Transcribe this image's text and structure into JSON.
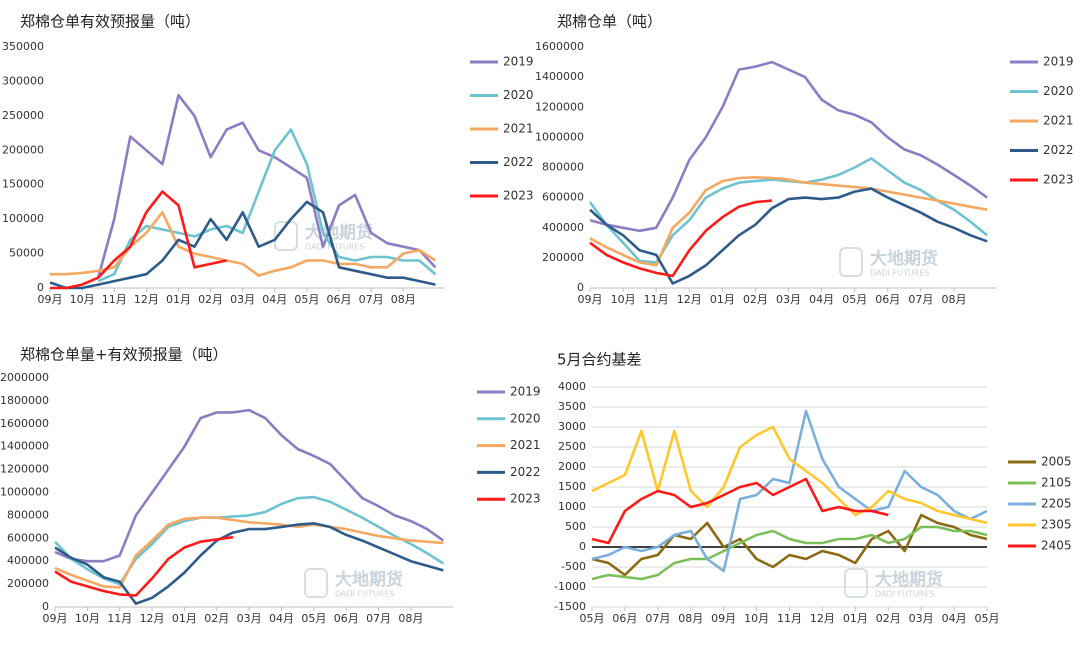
{
  "chart_data": [
    {
      "type": "line",
      "title": "郑棉仓单有效预报量（吨）",
      "watermark": "大地期货",
      "watermark_en": "DADI FUTURES",
      "x": [
        0,
        0.5,
        1,
        1.5,
        2,
        2.5,
        3,
        3.5,
        4,
        4.5,
        5,
        5.5,
        6,
        6.5,
        7,
        7.5,
        8,
        8.5,
        9,
        9.5,
        10,
        10.5,
        11,
        11.5,
        12
      ],
      "xlim": [
        0,
        12.3
      ],
      "xticks": [
        {
          "value": 0,
          "label": "09月"
        },
        {
          "value": 1,
          "label": "10月"
        },
        {
          "value": 2,
          "label": "11月"
        },
        {
          "value": 3,
          "label": "12月"
        },
        {
          "value": 4,
          "label": "01月"
        },
        {
          "value": 5,
          "label": "02月"
        },
        {
          "value": 6,
          "label": "03月"
        },
        {
          "value": 7,
          "label": "04月"
        },
        {
          "value": 8,
          "label": "05月"
        },
        {
          "value": 9,
          "label": "06月"
        },
        {
          "value": 10,
          "label": "07月"
        },
        {
          "value": 11,
          "label": "08月"
        }
      ],
      "ylim": [
        0,
        350000
      ],
      "yticks": [
        0,
        50000,
        100000,
        150000,
        200000,
        250000,
        300000,
        350000
      ],
      "grid": false,
      "series": [
        {
          "name": "2019",
          "color": "#8e7cc3",
          "values": [
            null,
            null,
            null,
            15000,
            100000,
            220000,
            200000,
            180000,
            280000,
            250000,
            190000,
            230000,
            240000,
            200000,
            190000,
            175000,
            160000,
            60000,
            120000,
            135000,
            80000,
            65000,
            60000,
            55000,
            30000
          ]
        },
        {
          "name": "2020",
          "color": "#6ec3d0",
          "values": [
            null,
            null,
            null,
            10000,
            20000,
            70000,
            90000,
            85000,
            80000,
            75000,
            85000,
            90000,
            80000,
            140000,
            200000,
            230000,
            180000,
            80000,
            45000,
            40000,
            45000,
            45000,
            40000,
            40000,
            20000
          ]
        },
        {
          "name": "2021",
          "color": "#f5a862",
          "values": [
            20000,
            20000,
            22000,
            25000,
            30000,
            60000,
            80000,
            110000,
            60000,
            50000,
            45000,
            40000,
            35000,
            18000,
            25000,
            30000,
            40000,
            40000,
            35000,
            35000,
            30000,
            30000,
            50000,
            55000,
            40000
          ]
        },
        {
          "name": "2022",
          "color": "#2f5b8a",
          "values": [
            8000,
            0,
            0,
            5000,
            10000,
            15000,
            20000,
            40000,
            70000,
            60000,
            100000,
            70000,
            110000,
            60000,
            70000,
            100000,
            125000,
            110000,
            30000,
            25000,
            20000,
            15000,
            15000,
            10000,
            5000
          ]
        },
        {
          "name": "2023",
          "color": "#ff1a1a",
          "values": [
            0,
            0,
            5000,
            15000,
            40000,
            60000,
            110000,
            140000,
            120000,
            30000,
            35000,
            40000,
            null,
            null,
            null,
            null,
            null,
            null,
            null,
            null,
            null,
            null,
            null,
            null,
            null
          ]
        }
      ]
    },
    {
      "type": "line",
      "title": "郑棉仓单（吨）",
      "watermark": "大地期货",
      "watermark_en": "DADI FUTURES",
      "x": [
        0,
        0.5,
        1,
        1.5,
        2,
        2.5,
        3,
        3.5,
        4,
        4.5,
        5,
        5.5,
        6,
        6.5,
        7,
        7.5,
        8,
        8.5,
        9,
        9.5,
        10,
        10.5,
        11,
        11.5,
        12
      ],
      "xlim": [
        0,
        12.3
      ],
      "xticks": [
        {
          "value": 0,
          "label": "09月"
        },
        {
          "value": 1,
          "label": "10月"
        },
        {
          "value": 2,
          "label": "11月"
        },
        {
          "value": 3,
          "label": "12月"
        },
        {
          "value": 4,
          "label": "01月"
        },
        {
          "value": 5,
          "label": "02月"
        },
        {
          "value": 6,
          "label": "03月"
        },
        {
          "value": 7,
          "label": "04月"
        },
        {
          "value": 8,
          "label": "05月"
        },
        {
          "value": 9,
          "label": "06月"
        },
        {
          "value": 10,
          "label": "07月"
        },
        {
          "value": 11,
          "label": "08月"
        }
      ],
      "ylim": [
        0,
        1600000
      ],
      "yticks": [
        0,
        200000,
        400000,
        600000,
        800000,
        1000000,
        1200000,
        1400000,
        1600000
      ],
      "grid": false,
      "series": [
        {
          "name": "2019",
          "color": "#8e7cc3",
          "values": [
            450000,
            420000,
            400000,
            380000,
            400000,
            600000,
            850000,
            1000000,
            1200000,
            1450000,
            1470000,
            1500000,
            1450000,
            1400000,
            1250000,
            1180000,
            1150000,
            1100000,
            1000000,
            920000,
            880000,
            820000,
            750000,
            680000,
            600000
          ]
        },
        {
          "name": "2020",
          "color": "#6ec3d0",
          "values": [
            570000,
            420000,
            300000,
            180000,
            170000,
            350000,
            450000,
            600000,
            660000,
            700000,
            710000,
            720000,
            710000,
            700000,
            720000,
            750000,
            800000,
            860000,
            780000,
            700000,
            650000,
            580000,
            520000,
            440000,
            350000
          ]
        },
        {
          "name": "2021",
          "color": "#f5a862",
          "values": [
            330000,
            270000,
            220000,
            170000,
            150000,
            400000,
            500000,
            650000,
            710000,
            730000,
            735000,
            730000,
            720000,
            700000,
            690000,
            680000,
            670000,
            660000,
            640000,
            620000,
            600000,
            580000,
            560000,
            540000,
            520000
          ]
        },
        {
          "name": "2022",
          "color": "#2f5b8a",
          "values": [
            520000,
            420000,
            350000,
            250000,
            220000,
            30000,
            80000,
            150000,
            250000,
            350000,
            420000,
            530000,
            590000,
            600000,
            590000,
            600000,
            640000,
            660000,
            600000,
            550000,
            500000,
            440000,
            400000,
            350000,
            310000
          ]
        },
        {
          "name": "2023",
          "color": "#ff1a1a",
          "values": [
            300000,
            220000,
            170000,
            130000,
            100000,
            80000,
            250000,
            380000,
            470000,
            540000,
            570000,
            580000,
            null,
            null,
            null,
            null,
            null,
            null,
            null,
            null,
            null,
            null,
            null,
            null,
            null
          ]
        }
      ]
    },
    {
      "type": "line",
      "title": "郑棉仓单量+有效预报量（吨）",
      "watermark": "大地期货",
      "watermark_en": "DADI FUTURES",
      "x": [
        0,
        0.5,
        1,
        1.5,
        2,
        2.5,
        3,
        3.5,
        4,
        4.5,
        5,
        5.5,
        6,
        6.5,
        7,
        7.5,
        8,
        8.5,
        9,
        9.5,
        10,
        10.5,
        11,
        11.5,
        12
      ],
      "xlim": [
        0,
        12.3
      ],
      "xticks": [
        {
          "value": 0,
          "label": "09月"
        },
        {
          "value": 1,
          "label": "10月"
        },
        {
          "value": 2,
          "label": "11月"
        },
        {
          "value": 3,
          "label": "12月"
        },
        {
          "value": 4,
          "label": "01月"
        },
        {
          "value": 5,
          "label": "02月"
        },
        {
          "value": 6,
          "label": "03月"
        },
        {
          "value": 7,
          "label": "04月"
        },
        {
          "value": 8,
          "label": "05月"
        },
        {
          "value": 9,
          "label": "06月"
        },
        {
          "value": 10,
          "label": "07月"
        },
        {
          "value": 11,
          "label": "08月"
        }
      ],
      "ylim": [
        0,
        2000000
      ],
      "yticks": [
        0,
        200000,
        400000,
        600000,
        800000,
        1000000,
        1200000,
        1400000,
        1600000,
        1800000,
        2000000
      ],
      "grid": false,
      "series": [
        {
          "name": "2019",
          "color": "#8e7cc3",
          "values": [
            480000,
            420000,
            400000,
            400000,
            450000,
            800000,
            1000000,
            1200000,
            1400000,
            1650000,
            1700000,
            1700000,
            1720000,
            1650000,
            1500000,
            1380000,
            1320000,
            1250000,
            1100000,
            950000,
            880000,
            800000,
            750000,
            680000,
            580000
          ]
        },
        {
          "name": "2020",
          "color": "#6ec3d0",
          "values": [
            570000,
            420000,
            330000,
            250000,
            200000,
            420000,
            550000,
            700000,
            750000,
            780000,
            780000,
            790000,
            800000,
            830000,
            900000,
            950000,
            960000,
            920000,
            850000,
            780000,
            700000,
            620000,
            550000,
            470000,
            380000
          ]
        },
        {
          "name": "2021",
          "color": "#f5a862",
          "values": [
            340000,
            280000,
            230000,
            180000,
            170000,
            450000,
            580000,
            720000,
            770000,
            780000,
            780000,
            760000,
            740000,
            730000,
            720000,
            700000,
            720000,
            700000,
            680000,
            650000,
            620000,
            600000,
            580000,
            570000,
            560000
          ]
        },
        {
          "name": "2022",
          "color": "#2f5b8a",
          "values": [
            520000,
            430000,
            370000,
            260000,
            220000,
            30000,
            80000,
            180000,
            300000,
            450000,
            580000,
            650000,
            680000,
            680000,
            700000,
            720000,
            730000,
            700000,
            630000,
            580000,
            520000,
            460000,
            400000,
            360000,
            320000
          ]
        },
        {
          "name": "2023",
          "color": "#ff1a1a",
          "values": [
            310000,
            220000,
            180000,
            140000,
            110000,
            100000,
            250000,
            420000,
            520000,
            570000,
            590000,
            610000,
            null,
            null,
            null,
            null,
            null,
            null,
            null,
            null,
            null,
            null,
            null,
            null,
            null
          ]
        }
      ]
    },
    {
      "type": "line",
      "title": "5月合约基差",
      "watermark": "大地期货",
      "watermark_en": "DADI FUTURES",
      "x": [
        0,
        0.5,
        1,
        1.5,
        2,
        2.5,
        3,
        3.5,
        4,
        4.5,
        5,
        5.5,
        6,
        6.5,
        7,
        7.5,
        8,
        8.5,
        9,
        9.5,
        10,
        10.5,
        11,
        11.5,
        12
      ],
      "xlim": [
        0,
        12
      ],
      "xticks": [
        {
          "value": 0,
          "label": "05月"
        },
        {
          "value": 1,
          "label": "06月"
        },
        {
          "value": 2,
          "label": "07月"
        },
        {
          "value": 3,
          "label": "08月"
        },
        {
          "value": 4,
          "label": "09月"
        },
        {
          "value": 5,
          "label": "10月"
        },
        {
          "value": 6,
          "label": "11月"
        },
        {
          "value": 7,
          "label": "12月"
        },
        {
          "value": 8,
          "label": "01月"
        },
        {
          "value": 9,
          "label": "02月"
        },
        {
          "value": 10,
          "label": "03月"
        },
        {
          "value": 11,
          "label": "04月"
        },
        {
          "value": 12,
          "label": "05月"
        }
      ],
      "ylim": [
        -1500,
        4000
      ],
      "yticks": [
        -1500,
        -1000,
        -500,
        0,
        500,
        1000,
        1500,
        2000,
        2500,
        3000,
        3500,
        4000
      ],
      "grid": true,
      "series": [
        {
          "name": "2005",
          "color": "#8b6a14",
          "values": [
            -300,
            -400,
            -700,
            -300,
            -200,
            300,
            200,
            600,
            0,
            200,
            -300,
            -500,
            -200,
            -300,
            -100,
            -200,
            -400,
            200,
            400,
            -100,
            800,
            600,
            500,
            300,
            200
          ]
        },
        {
          "name": "2105",
          "color": "#7cbf5a",
          "values": [
            -800,
            -700,
            -750,
            -800,
            -700,
            -400,
            -300,
            -300,
            -100,
            100,
            300,
            400,
            200,
            100,
            100,
            200,
            200,
            300,
            100,
            200,
            500,
            500,
            400,
            400,
            300
          ]
        },
        {
          "name": "2205",
          "color": "#7aaedc",
          "values": [
            -300,
            -200,
            0,
            -100,
            0,
            300,
            400,
            -300,
            -600,
            1200,
            1300,
            1700,
            1600,
            3400,
            2200,
            1500,
            1200,
            900,
            1000,
            1900,
            1500,
            1300,
            900,
            700,
            900
          ]
        },
        {
          "name": "2305",
          "color": "#ffc72c",
          "values": [
            1400,
            1600,
            1800,
            2900,
            1400,
            2900,
            1400,
            1000,
            1500,
            2500,
            2800,
            3000,
            2200,
            1900,
            1600,
            1200,
            800,
            1000,
            1400,
            1200,
            1100,
            900,
            800,
            700,
            600
          ]
        },
        {
          "name": "2405",
          "color": "#ff1a1a",
          "values": [
            200,
            100,
            900,
            1200,
            1400,
            1300,
            1000,
            1100,
            1300,
            1500,
            1600,
            1300,
            1500,
            1700,
            900,
            1000,
            900,
            900,
            800,
            null,
            null,
            null,
            null,
            null,
            null
          ]
        }
      ]
    }
  ]
}
